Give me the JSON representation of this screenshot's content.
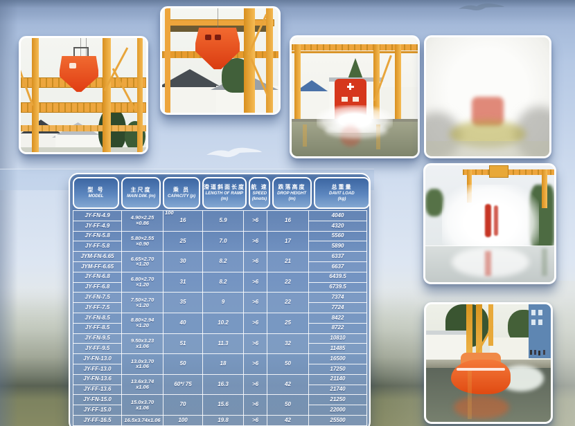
{
  "page": {
    "kind": "lifeboat-davit-specification-catalog-page"
  },
  "colors": {
    "table_blue": "#5d86bb",
    "header_blue": "#3c66a2",
    "crane_yellow": "#eda63c",
    "lifeboat_orange": "#e8541e",
    "lifeboat_red": "#d6371c",
    "background_blue": "#b5c8e4",
    "text_white": "#ffffff"
  },
  "table": {
    "headers": [
      {
        "zh": "型 号",
        "en": "MODEL",
        "unit": ""
      },
      {
        "zh": "主尺度",
        "en": "MAIN DIM. (m)",
        "unit": ""
      },
      {
        "zh": "乘 员",
        "en": "CAPACITY (p)",
        "unit": ""
      },
      {
        "zh": "滑道斜面长度",
        "en": "LENGTH OF RAMP",
        "unit": "(m)"
      },
      {
        "zh": "航 速",
        "en": "SPEED",
        "unit": "(knots)"
      },
      {
        "zh": "跌落高度",
        "en": "DROP HEIGHT",
        "unit": "(m)"
      },
      {
        "zh": "总重量",
        "en": "DAVIT LOAD",
        "unit": "(kg)"
      }
    ],
    "groups": [
      {
        "models": [
          "JY-FN-4.9",
          "JY-FF-4.9"
        ],
        "dim": [
          "4.90×2.25",
          "×0.86"
        ],
        "capacity": "16",
        "capacity_note": "100",
        "ramp": "5.9",
        "speed": ">6",
        "drop": "16",
        "loads": [
          "4040",
          "4320"
        ]
      },
      {
        "models": [
          "JY-FN-5.8",
          "JY-FF-5.8"
        ],
        "dim": [
          "5.80×2.55",
          "×0.90"
        ],
        "capacity": "25",
        "ramp": "7.0",
        "speed": ">6",
        "drop": "17",
        "loads": [
          "5560",
          "5890"
        ]
      },
      {
        "models": [
          "JYM-FN-6.65",
          "JYM-FF-6.65"
        ],
        "dim": [
          "6.65×2.70",
          "×1.20"
        ],
        "capacity": "30",
        "ramp": "8.2",
        "speed": ">6",
        "drop": "21",
        "loads": [
          "6337",
          "6637"
        ]
      },
      {
        "models": [
          "JY-FN-6.8",
          "JY-FF-6.8"
        ],
        "dim": [
          "6.80×2.70",
          "×1.20"
        ],
        "capacity": "31",
        "ramp": "8.2",
        "speed": ">6",
        "drop": "22",
        "loads": [
          "6439.5",
          "6739.5"
        ]
      },
      {
        "models": [
          "JY-FN-7.5",
          "JY-FF-7.5"
        ],
        "dim": [
          "7.50×2.70",
          "×1.20"
        ],
        "capacity": "35",
        "ramp": "9",
        "speed": ">6",
        "drop": "22",
        "loads": [
          "7374",
          "7724"
        ]
      },
      {
        "models": [
          "JY-FN-8.5",
          "JY-FF-8.5"
        ],
        "dim": [
          "8.80×2.94",
          "×1.20"
        ],
        "capacity": "40",
        "ramp": "10.2",
        "speed": ">6",
        "drop": "25",
        "loads": [
          "8422",
          "8722"
        ]
      },
      {
        "models": [
          "JY-FN-9.5",
          "JY-FF-9.5"
        ],
        "dim": [
          "9.50x3.23",
          "x1.06"
        ],
        "capacity": "51",
        "ramp": "11.3",
        "speed": ">6",
        "drop": "32",
        "loads": [
          "10810",
          "11485"
        ]
      },
      {
        "models": [
          "JY-FN-13.0",
          "JY-FF-13.0"
        ],
        "dim": [
          "13.0x3.70",
          "x1.06"
        ],
        "capacity": "50",
        "ramp": "18",
        "speed": ">6",
        "drop": "50",
        "loads": [
          "16500",
          "17250"
        ]
      },
      {
        "models": [
          "JY-FN-13.6",
          "JY-FF-13.6"
        ],
        "dim": [
          "13.6x3.74",
          "x1.06"
        ],
        "capacity": "60*/ 75",
        "ramp": "16.3",
        "speed": ">6",
        "drop": "42",
        "loads": [
          "21140",
          "21740"
        ]
      },
      {
        "models": [
          "JY-FN-15.0",
          "JY-FF-15.0"
        ],
        "dim": [
          "15.0x3.70",
          "x1.06"
        ],
        "capacity": "70",
        "ramp": "15.6",
        "speed": ">6",
        "drop": "50",
        "loads": [
          "21250",
          "22000"
        ]
      },
      {
        "models": [
          "JY-FF-16.5"
        ],
        "dim": [
          "16.5x3.74x1.06"
        ],
        "capacity": "100",
        "ramp": "19.8",
        "speed": ">6",
        "drop": "42",
        "loads": [
          "25500"
        ]
      }
    ]
  }
}
